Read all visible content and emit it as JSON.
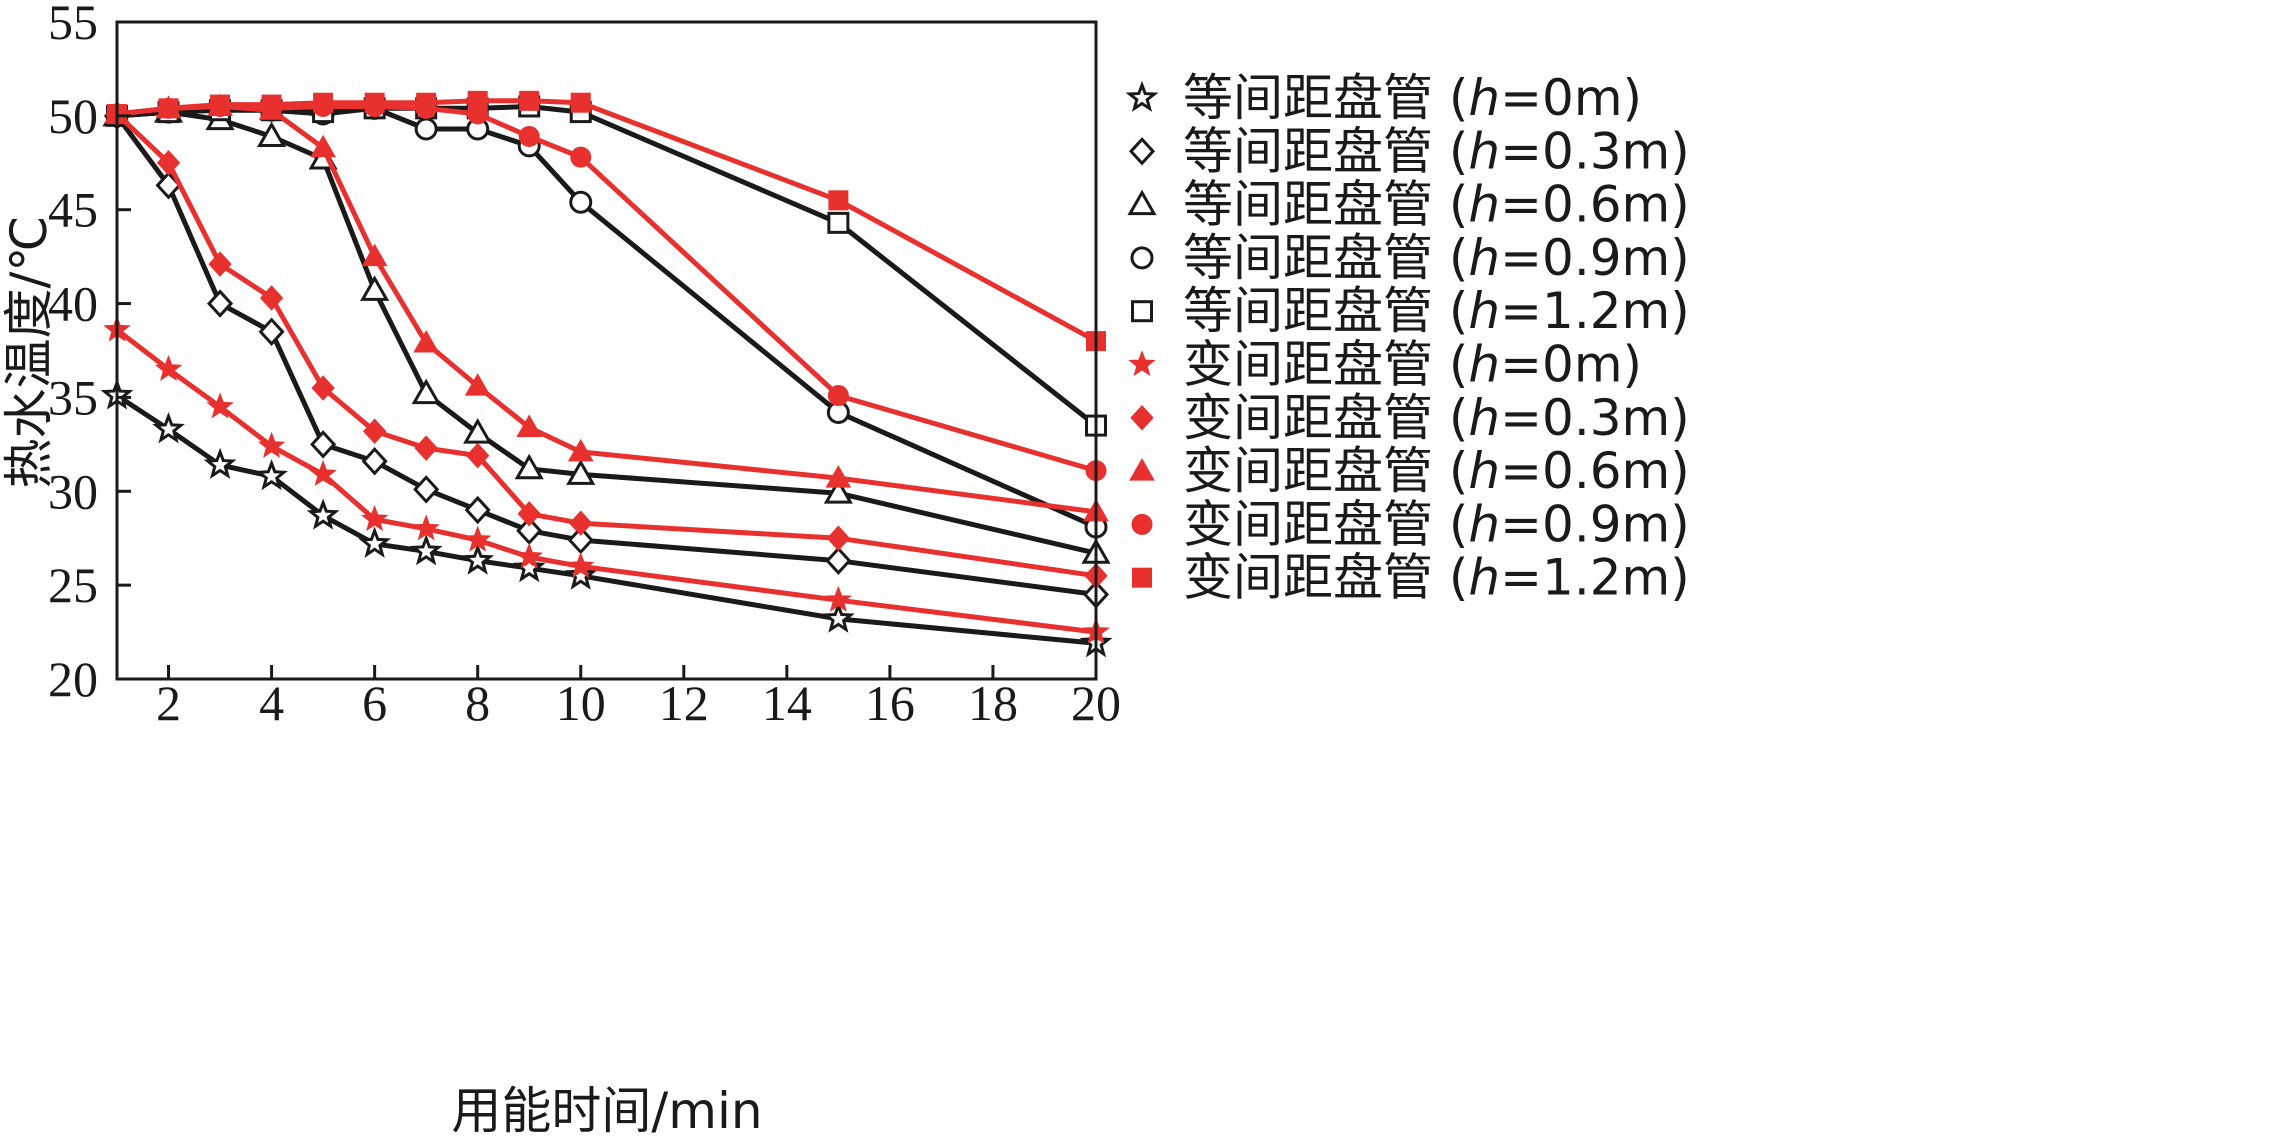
{
  "chart_data": {
    "type": "line",
    "title": "",
    "xlabel": "用能时间/min",
    "ylabel": "热水温度/℃",
    "xlim": [
      1,
      20
    ],
    "ylim": [
      20,
      55
    ],
    "xticks": [
      2,
      4,
      6,
      8,
      10,
      12,
      14,
      16,
      18,
      20
    ],
    "yticks": [
      20,
      25,
      30,
      35,
      40,
      45,
      50,
      55
    ],
    "legend_position": "right",
    "x": [
      1,
      2,
      3,
      4,
      5,
      6,
      7,
      8,
      9,
      10,
      15,
      20
    ],
    "series": [
      {
        "name": "等间距盘管 (h=0m)",
        "label_main": "等间距盘管 (",
        "label_var": "h",
        "label_rest": "=0m)",
        "color": "#1a1a1a",
        "marker": "star",
        "filled": false,
        "values": [
          35.1,
          33.3,
          31.4,
          30.8,
          28.7,
          27.2,
          26.8,
          26.3,
          25.9,
          25.5,
          23.2,
          21.9
        ]
      },
      {
        "name": "等间距盘管 (h=0.3m)",
        "label_main": "等间距盘管 (",
        "label_var": "h",
        "label_rest": "=0.3m)",
        "color": "#1a1a1a",
        "marker": "diamond",
        "filled": false,
        "values": [
          50.0,
          46.3,
          40.0,
          38.5,
          32.5,
          31.6,
          30.1,
          29.0,
          27.9,
          27.4,
          26.3,
          24.5
        ]
      },
      {
        "name": "等间距盘管 (h=0.6m)",
        "label_main": "等间距盘管 (",
        "label_var": "h",
        "label_rest": "=0.6m)",
        "color": "#1a1a1a",
        "marker": "triangle",
        "filled": false,
        "values": [
          50.0,
          50.2,
          49.8,
          48.9,
          47.7,
          40.7,
          35.2,
          33.1,
          31.2,
          30.9,
          29.9,
          26.7
        ]
      },
      {
        "name": "等间距盘管 (h=0.9m)",
        "label_main": "等间距盘管 (",
        "label_var": "h",
        "label_rest": "=0.9m)",
        "color": "#1a1a1a",
        "marker": "circle",
        "filled": false,
        "values": [
          50.0,
          50.2,
          50.4,
          50.3,
          50.1,
          50.4,
          49.3,
          49.3,
          48.4,
          45.4,
          34.2,
          28.1
        ]
      },
      {
        "name": "等间距盘管 (h=1.2m)",
        "label_main": "等间距盘管 (",
        "label_var": "h",
        "label_rest": "=1.2m)",
        "color": "#1a1a1a",
        "marker": "square",
        "filled": false,
        "values": [
          50.0,
          50.2,
          50.3,
          50.3,
          50.2,
          50.4,
          50.4,
          50.4,
          50.5,
          50.2,
          44.3,
          33.5
        ]
      },
      {
        "name": "变间距盘管 (h=0m)",
        "label_main": "变间距盘管 (",
        "label_var": "h",
        "label_rest": "=0m)",
        "color": "#e8312f",
        "marker": "star",
        "filled": true,
        "values": [
          38.6,
          36.5,
          34.5,
          32.4,
          30.9,
          28.5,
          28.0,
          27.4,
          26.5,
          26.0,
          24.2,
          22.5
        ]
      },
      {
        "name": "变间距盘管 (h=0.3m)",
        "label_main": "变间距盘管 (",
        "label_var": "h",
        "label_rest": "=0.3m)",
        "color": "#e8312f",
        "marker": "diamond",
        "filled": true,
        "values": [
          50.1,
          47.5,
          42.1,
          40.3,
          35.5,
          33.2,
          32.3,
          31.9,
          28.8,
          28.3,
          27.5,
          25.5
        ]
      },
      {
        "name": "变间距盘管 (h=0.6m)",
        "label_main": "变间距盘管 (",
        "label_var": "h",
        "label_rest": "=0.6m)",
        "color": "#e8312f",
        "marker": "triangle",
        "filled": true,
        "values": [
          50.1,
          50.4,
          50.5,
          50.3,
          48.3,
          42.5,
          37.9,
          35.6,
          33.4,
          32.1,
          30.7,
          28.9
        ]
      },
      {
        "name": "变间距盘管 (h=0.9m)",
        "label_main": "变间距盘管 (",
        "label_var": "h",
        "label_rest": "=0.9m)",
        "color": "#e8312f",
        "marker": "circle",
        "filled": true,
        "values": [
          50.1,
          50.4,
          50.5,
          50.4,
          50.5,
          50.5,
          50.4,
          50.1,
          48.9,
          47.8,
          35.1,
          31.1
        ]
      },
      {
        "name": "变间距盘管 (h=1.2m)",
        "label_main": "变间距盘管 (",
        "label_var": "h",
        "label_rest": "=1.2m)",
        "color": "#e8312f",
        "marker": "square",
        "filled": true,
        "values": [
          50.1,
          50.4,
          50.6,
          50.6,
          50.7,
          50.7,
          50.7,
          50.8,
          50.8,
          50.7,
          45.5,
          38.0
        ]
      }
    ]
  }
}
